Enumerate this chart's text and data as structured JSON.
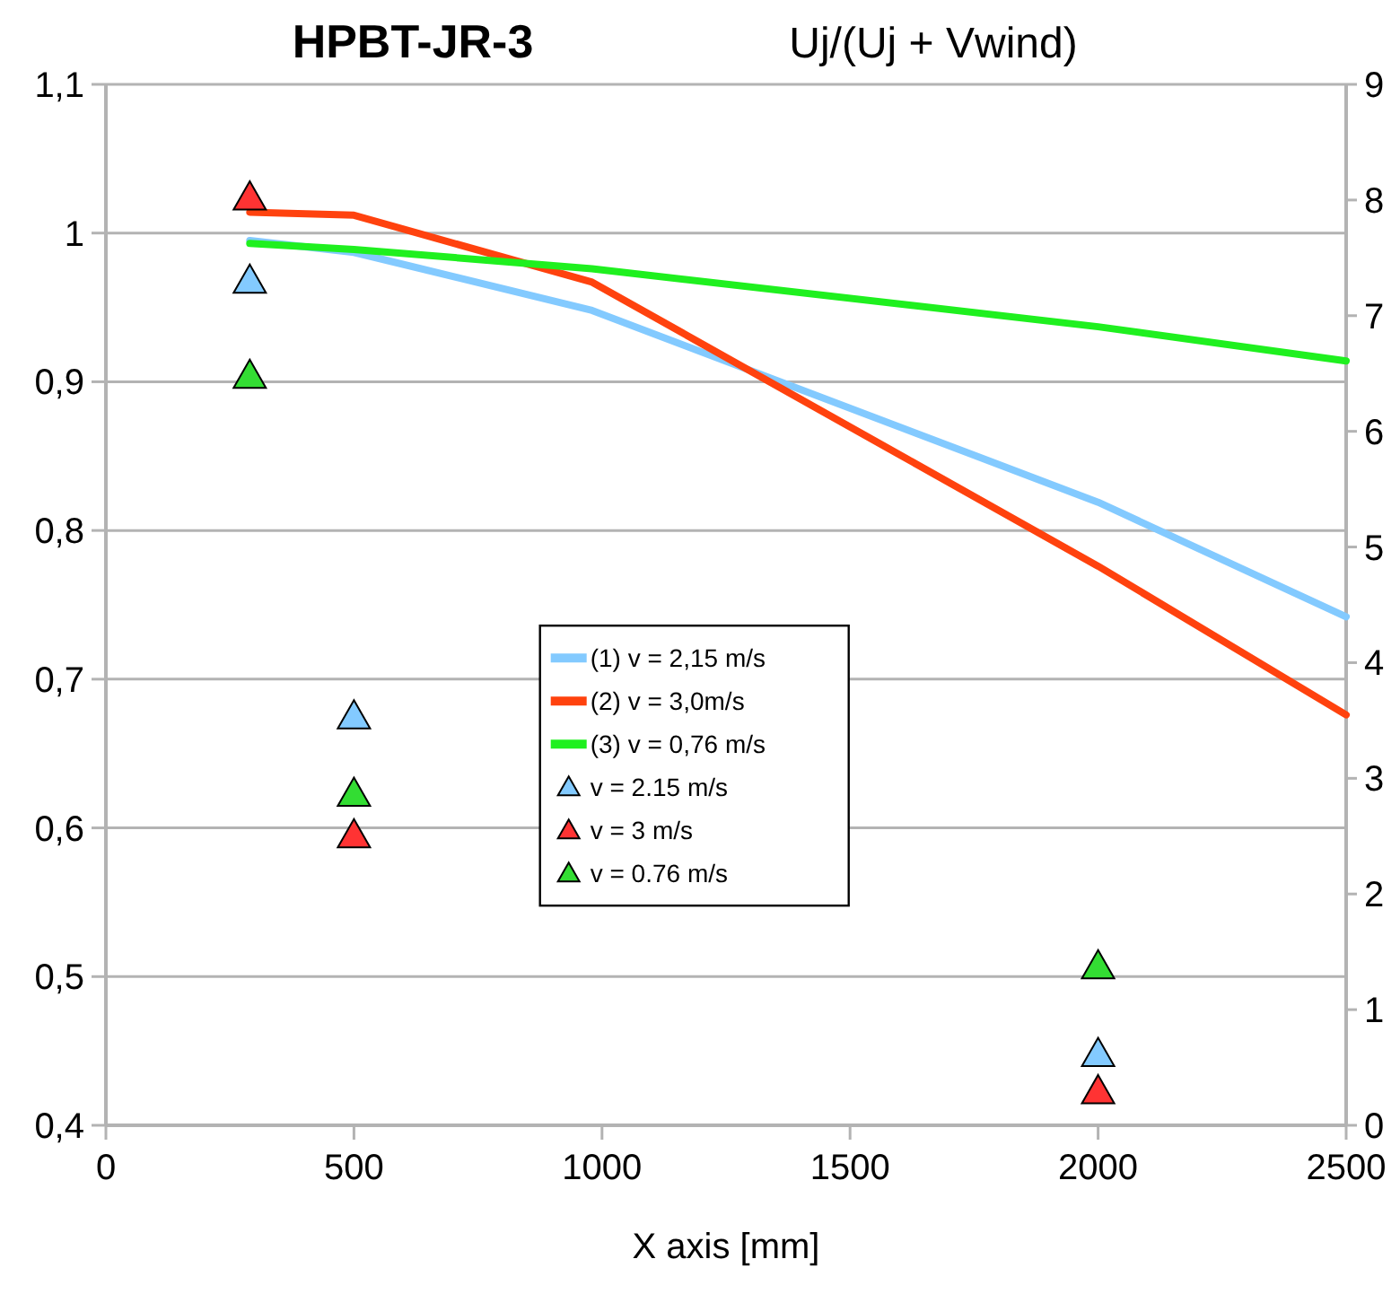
{
  "chart_data": {
    "type": "line",
    "title": "HPBT-JR-3",
    "subtitle": "Uj/(Uj + Vwind)",
    "xlabel": "X axis [mm]",
    "xlim": [
      0,
      2500
    ],
    "xticks": [
      0,
      500,
      1000,
      1500,
      2000,
      2500
    ],
    "ylim": [
      0.4,
      1.1
    ],
    "yticks": [
      {
        "value": 0.4,
        "label": "0,4"
      },
      {
        "value": 0.5,
        "label": "0,5"
      },
      {
        "value": 0.6,
        "label": "0,6"
      },
      {
        "value": 0.7,
        "label": "0,7"
      },
      {
        "value": 0.8,
        "label": "0,8"
      },
      {
        "value": 0.9,
        "label": "0,9"
      },
      1,
      {
        "value": 1.1,
        "label": "1,1"
      }
    ],
    "y2lim": [
      0,
      9
    ],
    "y2ticks": [
      0,
      1,
      2,
      3,
      4,
      5,
      6,
      7,
      8,
      9
    ],
    "grid": "y",
    "legend": "bottom",
    "line_style": "solid",
    "series": [
      {
        "name": "(1) v = 2,15 m/s",
        "color": "#83caff",
        "marker": "none",
        "x": [
          290,
          500,
          980,
          2000,
          2500
        ],
        "values": [
          0.995,
          0.987,
          0.948,
          0.819,
          0.742
        ]
      },
      {
        "name": "(2) v = 3,0m/s",
        "color": "#ff420e",
        "marker": "none",
        "x": [
          290,
          500,
          980,
          2000,
          2500
        ],
        "values": [
          1.014,
          1.012,
          0.967,
          0.776,
          0.676
        ]
      },
      {
        "name": "(3) v = 0,76 m/s",
        "color": "#1ff01f",
        "marker": "none",
        "x": [
          290,
          500,
          980,
          2000,
          2500
        ],
        "values": [
          0.993,
          0.989,
          0.976,
          0.937,
          0.914
        ]
      },
      {
        "name": "v = 2.15 m/s",
        "type": "scatter",
        "color": "#83caff",
        "marker": "triangle",
        "x": [
          290,
          500,
          2000
        ],
        "values": [
          0.968,
          0.675,
          0.448
        ]
      },
      {
        "name": "v = 3 m/s",
        "type": "scatter",
        "color": "#ff3333",
        "marker": "triangle",
        "x": [
          290,
          500,
          2000
        ],
        "values": [
          1.024,
          0.595,
          0.423
        ]
      },
      {
        "name": "v = 0.76 m/s",
        "type": "scatter",
        "color": "#33dd33",
        "marker": "triangle",
        "x": [
          290,
          500,
          2000
        ],
        "values": [
          0.904,
          0.623,
          0.507
        ]
      }
    ]
  }
}
